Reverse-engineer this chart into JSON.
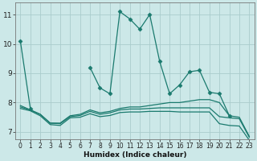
{
  "title": "",
  "xlabel": "Humidex (Indice chaleur)",
  "background_color": "#cce8e8",
  "grid_color": "#aacccc",
  "line_color": "#1a7a6e",
  "xlim": [
    -0.5,
    23.5
  ],
  "ylim": [
    6.75,
    11.4
  ],
  "yticks": [
    7,
    8,
    9,
    10,
    11
  ],
  "xticks": [
    0,
    1,
    2,
    3,
    4,
    5,
    6,
    7,
    8,
    9,
    10,
    11,
    12,
    13,
    14,
    15,
    16,
    17,
    18,
    19,
    20,
    21,
    22,
    23
  ],
  "series": [
    {
      "x": [
        0,
        1
      ],
      "y": [
        10.1,
        7.8
      ],
      "marker": true,
      "linestyle": "-"
    },
    {
      "x": [
        7,
        8,
        9,
        10,
        11,
        12,
        13,
        14,
        15,
        16,
        17,
        18,
        19,
        20,
        21
      ],
      "y": [
        9.2,
        8.5,
        8.3,
        11.1,
        10.85,
        10.5,
        11.0,
        9.4,
        8.3,
        8.6,
        9.05,
        9.1,
        8.35,
        8.3,
        7.55
      ],
      "marker": true,
      "linestyle": "-"
    },
    {
      "x": [
        0,
        1,
        2,
        3,
        4,
        5,
        6,
        7,
        8,
        9,
        10,
        11,
        12,
        13,
        14,
        15,
        16,
        17,
        18,
        19,
        20,
        21,
        22,
        23
      ],
      "y": [
        7.9,
        7.75,
        7.6,
        7.3,
        7.3,
        7.55,
        7.6,
        7.75,
        7.65,
        7.7,
        7.8,
        7.85,
        7.85,
        7.9,
        7.95,
        8.0,
        8.0,
        8.05,
        8.1,
        8.1,
        8.0,
        7.55,
        7.5,
        6.85
      ],
      "marker": false,
      "linestyle": "-"
    },
    {
      "x": [
        0,
        1,
        2,
        3,
        4,
        5,
        6,
        7,
        8,
        9,
        10,
        11,
        12,
        13,
        14,
        15,
        16,
        17,
        18,
        19,
        20,
        21,
        22,
        23
      ],
      "y": [
        7.85,
        7.75,
        7.6,
        7.3,
        7.28,
        7.52,
        7.56,
        7.7,
        7.6,
        7.65,
        7.75,
        7.78,
        7.78,
        7.8,
        7.82,
        7.82,
        7.82,
        7.82,
        7.82,
        7.82,
        7.52,
        7.48,
        7.45,
        6.82
      ],
      "marker": false,
      "linestyle": "-"
    },
    {
      "x": [
        0,
        1,
        2,
        3,
        4,
        5,
        6,
        7,
        8,
        9,
        10,
        11,
        12,
        13,
        14,
        15,
        16,
        17,
        18,
        19,
        20,
        21,
        22,
        23
      ],
      "y": [
        7.8,
        7.72,
        7.55,
        7.25,
        7.22,
        7.48,
        7.5,
        7.62,
        7.52,
        7.56,
        7.66,
        7.68,
        7.68,
        7.7,
        7.7,
        7.7,
        7.68,
        7.68,
        7.68,
        7.68,
        7.28,
        7.22,
        7.2,
        6.72
      ],
      "marker": false,
      "linestyle": "-"
    }
  ]
}
